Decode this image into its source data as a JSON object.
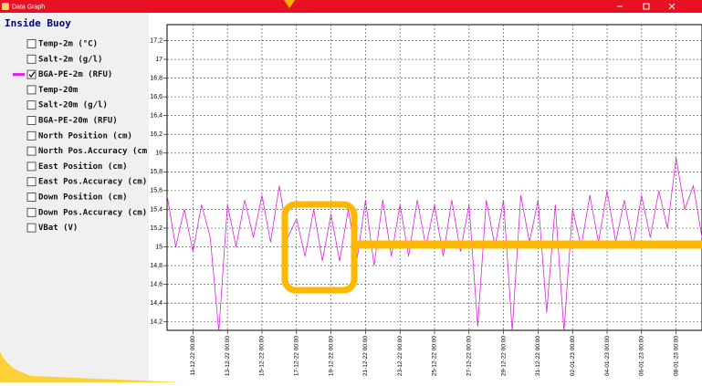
{
  "window": {
    "title": "Data Graph"
  },
  "sidebar": {
    "title": "Inside Buoy",
    "items": [
      {
        "label": "Temp-2m (°C)",
        "checked": false
      },
      {
        "label": "Salt-2m (g/l)",
        "checked": false
      },
      {
        "label": "BGA-PE-2m (RFU)",
        "checked": true
      },
      {
        "label": "Temp-20m",
        "checked": false
      },
      {
        "label": "Salt-20m (g/l)",
        "checked": false
      },
      {
        "label": "BGA-PE-20m (RFU)",
        "checked": false
      },
      {
        "label": "North Position (cm)",
        "checked": false
      },
      {
        "label": "North Pos.Accuracy (cm)",
        "checked": false
      },
      {
        "label": "East Position (cm)",
        "checked": false
      },
      {
        "label": "East Pos.Accuracy (cm)",
        "checked": false
      },
      {
        "label": "Down Position (cm)",
        "checked": false
      },
      {
        "label": "Down Pos.Accuracy (cm)",
        "checked": false
      },
      {
        "label": "VBat (V)",
        "checked": false
      }
    ]
  },
  "chart_data": {
    "type": "line",
    "grid": true,
    "x": [
      "2022-12-09T12:00",
      "2022-12-10T00:00",
      "2022-12-10T12:00",
      "2022-12-11T00:00",
      "2022-12-11T12:00",
      "2022-12-12T00:00",
      "2022-12-12T12:00",
      "2022-12-13T00:00",
      "2022-12-13T12:00",
      "2022-12-14T00:00",
      "2022-12-14T12:00",
      "2022-12-15T00:00",
      "2022-12-15T12:00",
      "2022-12-16T00:00",
      "2022-12-16T12:00",
      "2022-12-17T00:00",
      "2022-12-17T12:00",
      "2022-12-18T00:00",
      "2022-12-18T12:00",
      "2022-12-19T00:00",
      "2022-12-19T12:00",
      "2022-12-20T00:00",
      "2022-12-20T12:00",
      "2022-12-21T00:00",
      "2022-12-21T12:00",
      "2022-12-22T00:00",
      "2022-12-22T12:00",
      "2022-12-23T00:00",
      "2022-12-23T12:00",
      "2022-12-24T00:00",
      "2022-12-24T12:00",
      "2022-12-25T00:00",
      "2022-12-25T12:00",
      "2022-12-26T00:00",
      "2022-12-26T12:00",
      "2022-12-27T00:00",
      "2022-12-27T12:00",
      "2022-12-28T00:00",
      "2022-12-28T12:00",
      "2022-12-29T00:00",
      "2022-12-29T12:00",
      "2022-12-30T00:00",
      "2022-12-30T12:00",
      "2022-12-31T00:00",
      "2022-12-31T12:00",
      "2023-01-01T00:00",
      "2023-01-01T12:00",
      "2023-01-02T00:00",
      "2023-01-02T12:00",
      "2023-01-03T00:00",
      "2023-01-03T12:00",
      "2023-01-04T00:00",
      "2023-01-04T12:00",
      "2023-01-05T00:00",
      "2023-01-05T12:00",
      "2023-01-06T00:00",
      "2023-01-06T12:00",
      "2023-01-07T00:00",
      "2023-01-07T12:00",
      "2023-01-08T00:00",
      "2023-01-08T12:00",
      "2023-01-09T00:00",
      "2023-01-09T12:00"
    ],
    "series": [
      {
        "color": "#e020e0",
        "values": [
          15.55,
          15.0,
          15.4,
          14.95,
          15.45,
          15.1,
          14.1,
          15.45,
          15.0,
          15.5,
          15.1,
          15.55,
          15.05,
          15.65,
          15.1,
          15.3,
          14.9,
          15.4,
          14.85,
          15.35,
          14.85,
          15.4,
          14.85,
          15.5,
          14.8,
          15.5,
          14.9,
          15.45,
          14.9,
          15.5,
          15.0,
          15.45,
          14.9,
          15.5,
          14.95,
          15.45,
          14.15,
          15.5,
          15.0,
          15.5,
          14.1,
          15.55,
          15.05,
          15.5,
          14.3,
          15.45,
          14.1,
          15.4,
          15.0,
          15.55,
          15.05,
          15.6,
          15.05,
          15.5,
          15.0,
          15.55,
          15.1,
          15.6,
          15.2,
          15.95,
          15.4,
          15.65,
          15.1
        ]
      }
    ],
    "xlim": [
      "2022-12-09T12:00",
      "2023-01-09T12:00"
    ],
    "xticks": [
      {
        "value": "2022-12-11T00:00",
        "label": "11-12-22 00:00"
      },
      {
        "value": "2022-12-13T00:00",
        "label": "13-12-22 00:00"
      },
      {
        "value": "2022-12-15T00:00",
        "label": "15-12-22 00:00"
      },
      {
        "value": "2022-12-17T00:00",
        "label": "17-12-22 00:00"
      },
      {
        "value": "2022-12-19T00:00",
        "label": "19-12-22 00:00"
      },
      {
        "value": "2022-12-21T00:00",
        "label": "21-12-22 00:00"
      },
      {
        "value": "2022-12-23T00:00",
        "label": "23-12-22 00:00"
      },
      {
        "value": "2022-12-25T00:00",
        "label": "25-12-22 00:00"
      },
      {
        "value": "2022-12-27T00:00",
        "label": "27-12-22 00:00"
      },
      {
        "value": "2022-12-29T00:00",
        "label": "29-12-22 00:00"
      },
      {
        "value": "2022-12-31T00:00",
        "label": "31-12-22 00:00"
      },
      {
        "value": "2023-01-02T00:00",
        "label": "02-01-23 00:00"
      },
      {
        "value": "2023-01-04T00:00",
        "label": "04-01-23 00:00"
      },
      {
        "value": "2023-01-06T00:00",
        "label": "06-01-23 00:00"
      },
      {
        "value": "2023-01-08T00:00",
        "label": "08-01-23 00:00"
      }
    ],
    "ylim": [
      14.11,
      17.37
    ],
    "yticks": [
      {
        "value": 14.2,
        "label": "14,2"
      },
      {
        "value": 14.4,
        "label": "14,4"
      },
      {
        "value": 14.6,
        "label": "14,6"
      },
      {
        "value": 14.8,
        "label": "14,8"
      },
      15,
      {
        "value": 15.2,
        "label": "15,2"
      },
      {
        "value": 15.4,
        "label": "15,4"
      },
      {
        "value": 15.6,
        "label": "15,6"
      },
      {
        "value": 15.8,
        "label": "15,8"
      },
      16,
      {
        "value": 16.2,
        "label": "16,2"
      },
      {
        "value": 16.4,
        "label": "16,4"
      },
      {
        "value": 16.6,
        "label": "16,6"
      },
      {
        "value": 16.8,
        "label": "16,8"
      },
      17,
      {
        "value": 17.2,
        "label": "17,2"
      }
    ]
  }
}
